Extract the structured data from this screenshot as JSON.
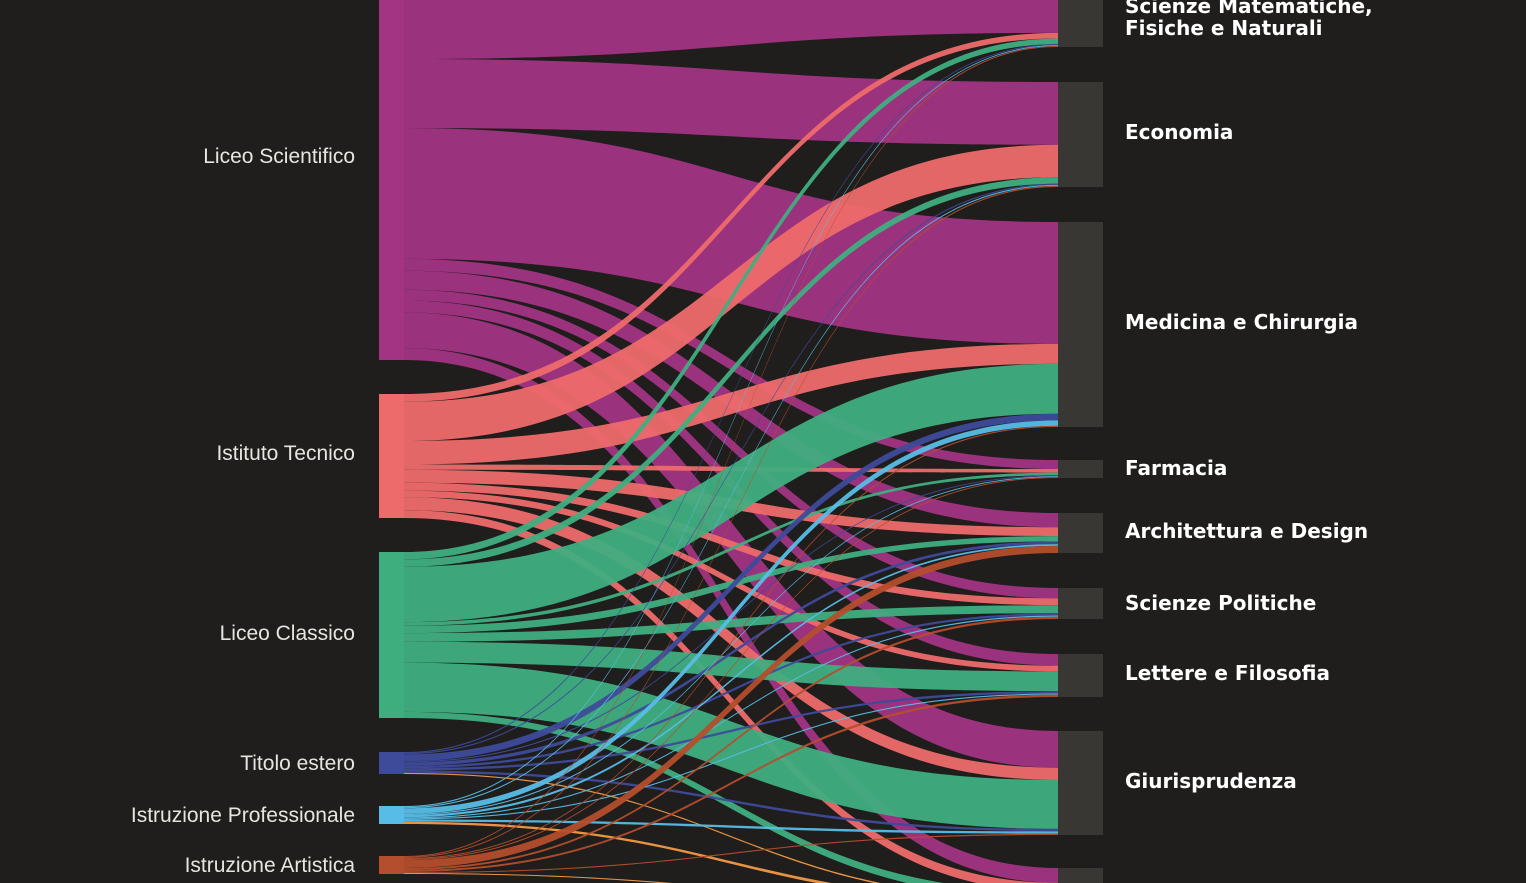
{
  "diagram": {
    "type": "sankey",
    "sources": [
      {
        "id": "ls",
        "label": "Liceo Scientifico",
        "color": "#a23483"
      },
      {
        "id": "it",
        "label": "Istituto Tecnico",
        "color": "#ee6b6b"
      },
      {
        "id": "lc",
        "label": "Liceo Classico",
        "color": "#3fae7f"
      },
      {
        "id": "te",
        "label": "Titolo estero",
        "color": "#3e4b9a"
      },
      {
        "id": "ip",
        "label": "Istruzione Professionale",
        "color": "#58bde6"
      },
      {
        "id": "ia",
        "label": "Istruzione Artistica",
        "color": "#b44e2c"
      }
    ],
    "targets": [
      {
        "id": "smfn",
        "label": "Scienze Matematiche,\nFisiche e Naturali",
        "lines": [
          "Scienze Matematiche,",
          "Fisiche e Naturali"
        ]
      },
      {
        "id": "eco",
        "label": "Economia",
        "lines": [
          "Economia"
        ]
      },
      {
        "id": "med",
        "label": "Medicina e Chirurgia",
        "lines": [
          "Medicina e Chirurgia"
        ]
      },
      {
        "id": "far",
        "label": "Farmacia",
        "lines": [
          "Farmacia"
        ]
      },
      {
        "id": "arc",
        "label": "Architettura e Design",
        "lines": [
          "Architettura e Design"
        ]
      },
      {
        "id": "sp",
        "label": "Scienze Politiche",
        "lines": [
          "Scienze Politiche"
        ]
      },
      {
        "id": "lf",
        "label": "Lettere e Filosofia",
        "lines": [
          "Lettere e Filosofia"
        ]
      },
      {
        "id": "giu",
        "label": "Giurisprudenza",
        "lines": [
          "Giurisprudenza"
        ]
      },
      {
        "id": "extra",
        "label": "",
        "lines": []
      }
    ],
    "extra_flow_color": "#f39a45",
    "node_color": "#393734"
  }
}
